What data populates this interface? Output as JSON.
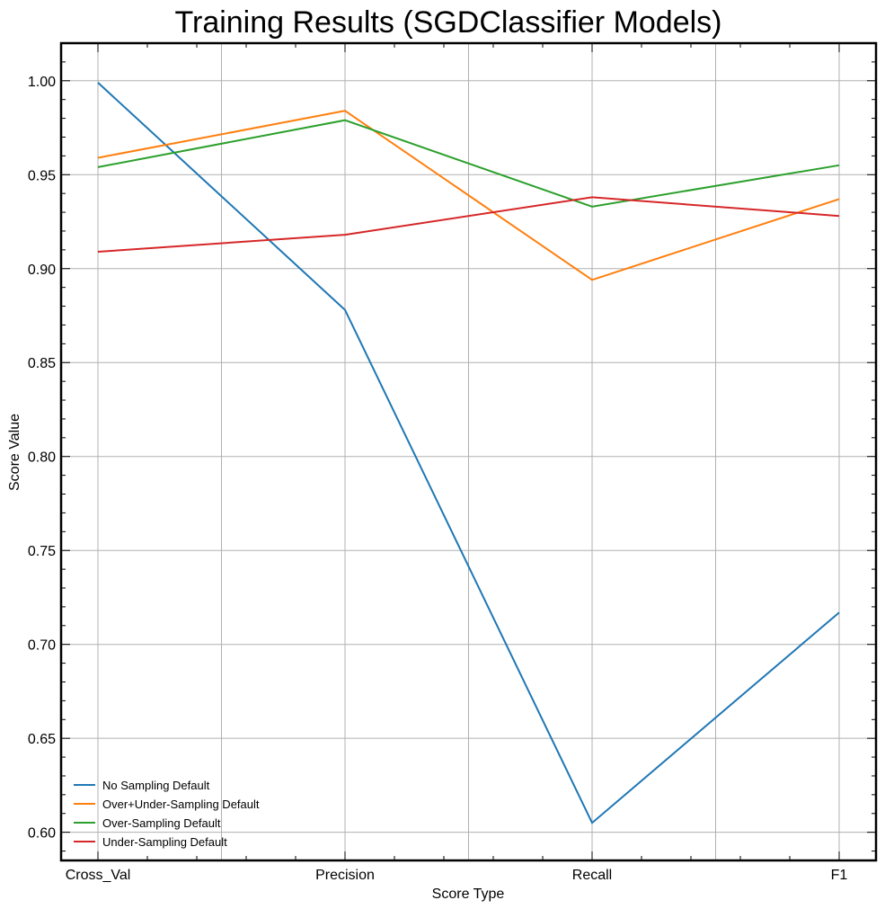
{
  "chart_data": {
    "type": "line",
    "title": "Training Results (SGDClassifier Models)",
    "xlabel": "Score Type",
    "ylabel": "Score Value",
    "categories": [
      "Cross_Val",
      "Precision",
      "Recall",
      "F1"
    ],
    "ylim": [
      0.585,
      1.02
    ],
    "yticks": [
      0.6,
      0.65,
      0.7,
      0.75,
      0.8,
      0.85,
      0.9,
      0.95,
      1.0
    ],
    "ytick_labels": [
      "0.60",
      "0.65",
      "0.70",
      "0.75",
      "0.80",
      "0.85",
      "0.90",
      "0.95",
      "1.00"
    ],
    "grid": true,
    "legend_position": "lower-left",
    "series": [
      {
        "name": "No Sampling Default",
        "color": "#1f77b4",
        "values": [
          0.999,
          0.878,
          0.605,
          0.717
        ]
      },
      {
        "name": "Over+Under-Sampling Default",
        "color": "#ff7f0e",
        "values": [
          0.959,
          0.984,
          0.894,
          0.937
        ]
      },
      {
        "name": "Over-Sampling Default",
        "color": "#2ca02c",
        "values": [
          0.954,
          0.979,
          0.933,
          0.955
        ]
      },
      {
        "name": "Under-Sampling Default",
        "color": "#d62728",
        "values": [
          0.909,
          0.918,
          0.938,
          0.928
        ]
      }
    ]
  }
}
